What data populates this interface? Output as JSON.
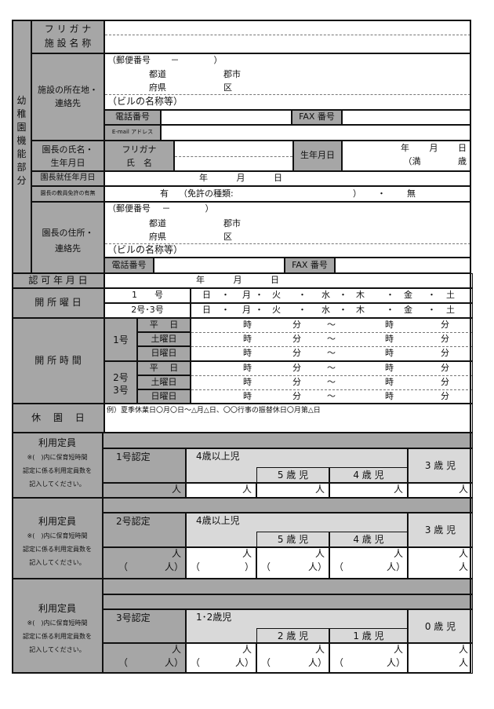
{
  "section_label": "幼\n稚\n園\n機\n能\n部\n分",
  "facility": {
    "furigana_name_label": "フ リ ガ ナ\n施 設 名 称",
    "address_label": "施設の所在地・\n連絡先",
    "postal": "（郵便番号　　 －　　　　）",
    "prefecture": "都道\n府県",
    "city": "郡市\n区",
    "building": "（ビルの名称等）",
    "tel_label": "電話番号",
    "fax_label": "FAX 番号",
    "email_label": "E-mail アドレス"
  },
  "director": {
    "name_label": "園長の氏名・\n生年月日",
    "furigana_label": "フリガナ\n氏　名",
    "birth_label": "生年月日",
    "birth_date": "年　　 月　　 日",
    "age": "（満　　　　 歳",
    "appointed_label": "園長就任年月日",
    "appointed_value": "年　　　 月　　　 日",
    "license_label": "園長の教員免許の有無",
    "license_yes": "有",
    "license_type": "（免許の種類:",
    "license_close": "）",
    "license_sep": "・",
    "license_no": "無",
    "address_label": "園長の住所・\n連絡先",
    "postal": "（郵便番号　 －　　　　）",
    "prefecture": "都道\n府県",
    "city": "郡市\n区",
    "building": "（ビルの名称等）",
    "tel_label": "電話番号",
    "fax_label": "FAX 番号"
  },
  "approval": {
    "label": "認 可 年 月 日",
    "value": "年　　　 月　　　 日"
  },
  "open_days": {
    "label": "開 所 曜 日",
    "rows": [
      "1　　号",
      "2号･3号"
    ],
    "days": [
      "日",
      "月",
      "火",
      "水",
      "木",
      "金",
      "土"
    ],
    "separator": "・"
  },
  "open_hours": {
    "label": "開 所 時 間",
    "groups": [
      "1号",
      "2号\n3号"
    ],
    "day_types": [
      "平　 日",
      "土曜日",
      "日曜日"
    ],
    "hour": "時",
    "minute": "分",
    "tilde": "～"
  },
  "holidays": {
    "label": "休　 園　 日",
    "example": "例）夏季休業日〇月〇日～△月△日、〇〇行事の振替休日〇月第△日"
  },
  "capacity": {
    "title": "利用定員",
    "note": "※(　)内に保育短時間\n認定に係る利用定員数を\n記入してください。",
    "unit": "人",
    "open_paren": "（",
    "close_unit": "人）",
    "close_paren": "）",
    "blocks": [
      {
        "cert": "1号認定",
        "group": "4歳以上児",
        "subs": [
          "5 歳 児",
          "4 歳 児"
        ],
        "single": "3 歳 児"
      },
      {
        "cert": "2号認定",
        "group": "4歳以上児",
        "subs": [
          "5 歳 児",
          "4 歳 児"
        ],
        "single": "3 歳 児"
      },
      {
        "cert": "3号認定",
        "group": "1･2歳児",
        "subs": [
          "2 歳 児",
          "1 歳 児"
        ],
        "single": "0 歳 児"
      }
    ]
  },
  "colors": {
    "label_gray": "#a6a6a6",
    "header_light_gray": "#d9d9d9",
    "line": "#111111"
  }
}
